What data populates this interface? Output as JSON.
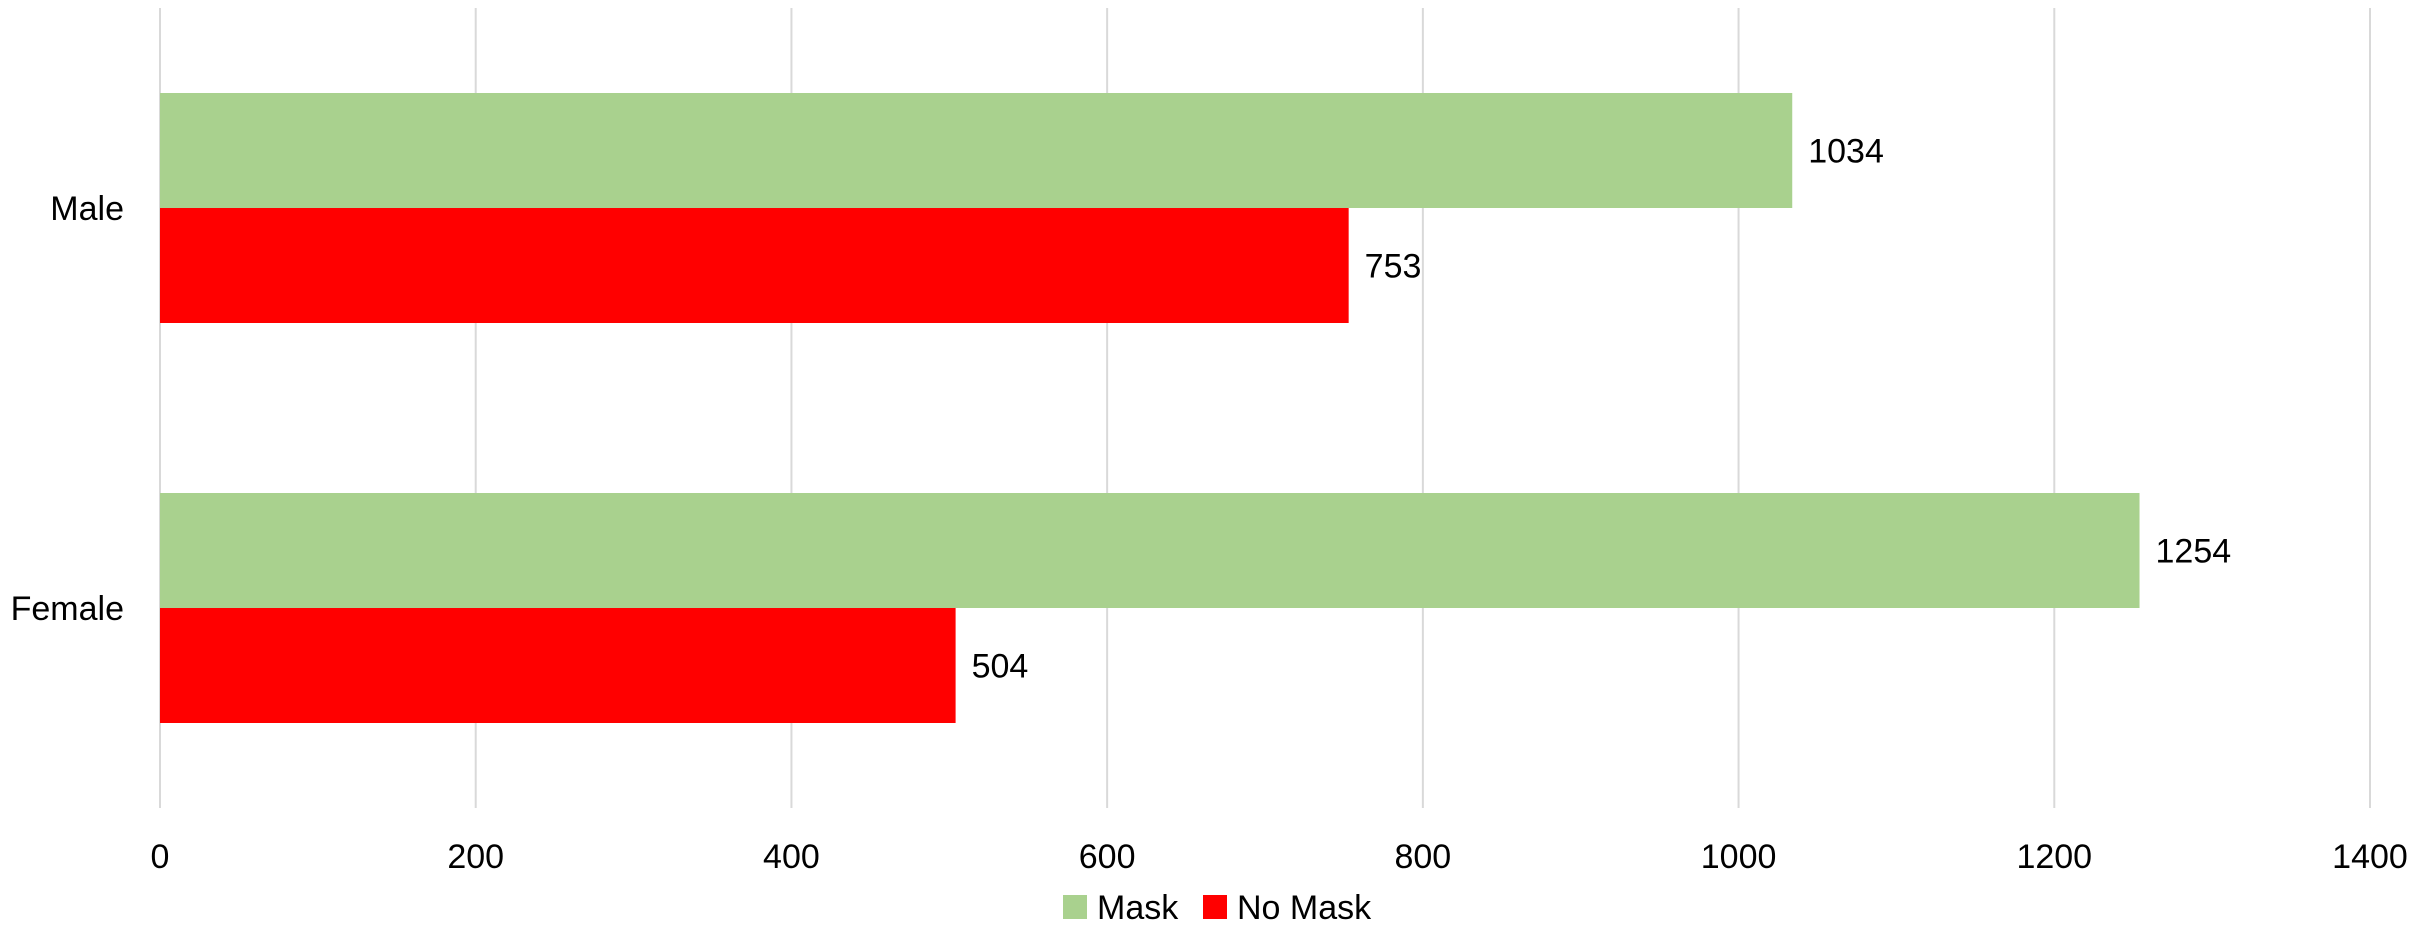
{
  "chart_data": {
    "type": "bar",
    "orientation": "horizontal",
    "title": "",
    "xlabel": "",
    "ylabel": "",
    "categories": [
      "Male",
      "Female"
    ],
    "series": [
      {
        "name": "Mask",
        "color": "#a9d18e",
        "values": [
          1034,
          1254
        ]
      },
      {
        "name": "No Mask",
        "color": "#ff0000",
        "values": [
          753,
          504
        ]
      }
    ],
    "xlim": [
      0,
      1400
    ],
    "xticks": [
      0,
      200,
      400,
      600,
      800,
      1000,
      1200,
      1400
    ],
    "grid": "vertical",
    "legend": "bottom-center",
    "data_labels": true
  }
}
